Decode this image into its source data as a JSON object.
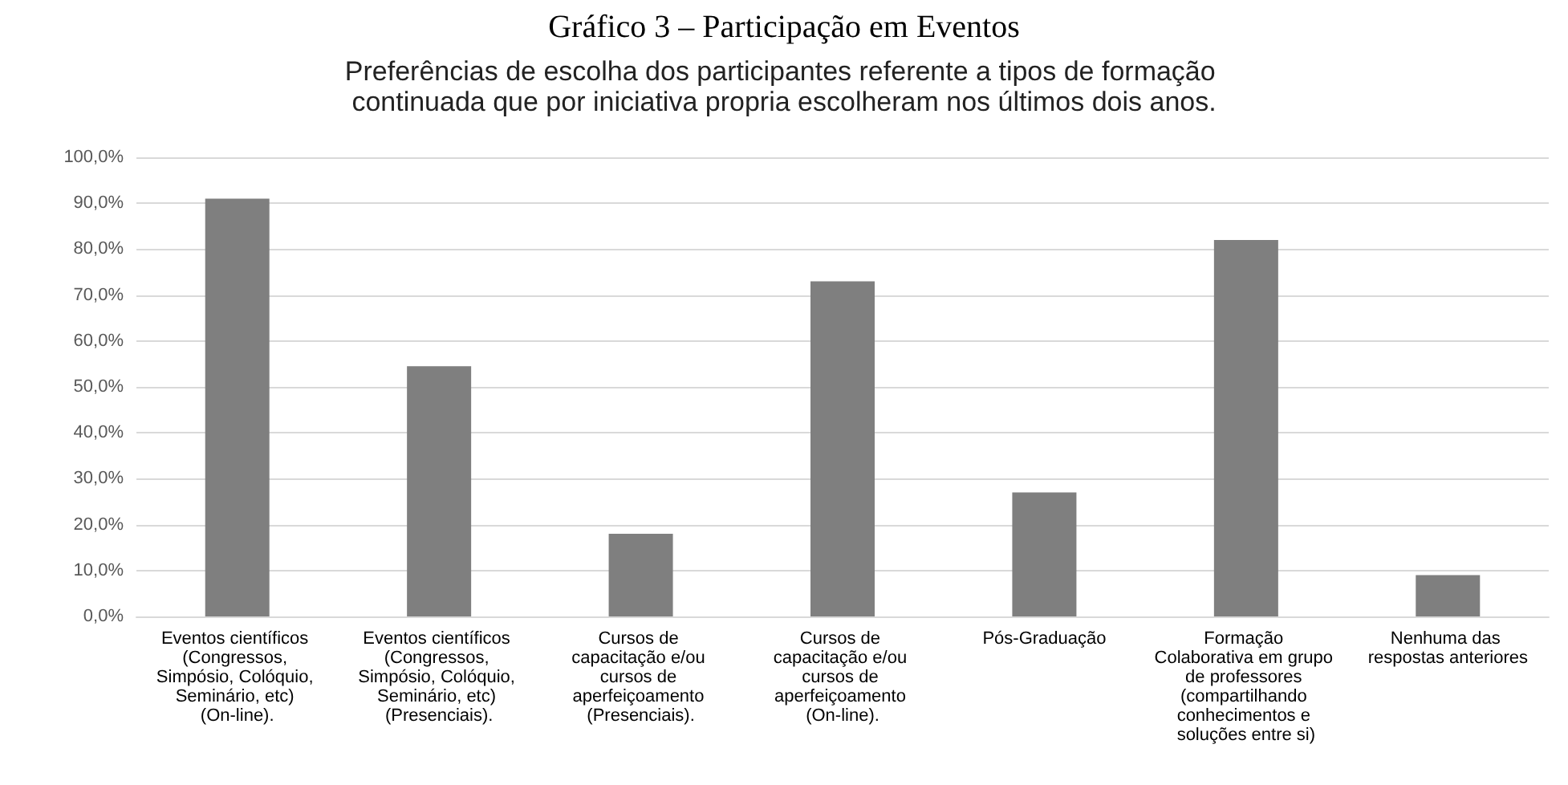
{
  "chart_data": {
    "type": "bar",
    "title": "Gráfico 3 – Participação em Eventos",
    "subtitle": "Preferências de escolha dos participantes referente a tipos de formação continuada que por iniciativa propria escolheram nos últimos dois anos.",
    "categories": [
      "Eventos científicos (Congressos, Simpósio, Colóquio, Seminário, etc) (On-line).",
      "Eventos científicos (Congressos, Simpósio, Colóquio, Seminário, etc) (Presenciais).",
      "Cursos de capacitação e/ou cursos de aperfeiçoamento (Presenciais).",
      "Cursos de capacitação e/ou cursos de aperfeiçoamento (On-line).",
      "Pós-Graduação",
      "Formação Colaborativa em grupo de professores (compartilhando conhecimentos e soluções entre si)",
      "Nenhuma das respostas anteriores"
    ],
    "values": [
      91,
      54.5,
      18,
      73,
      27,
      82,
      9
    ],
    "color": "#7f7f7f",
    "ylim": [
      0,
      100
    ],
    "yticks": [
      {
        "value": 0,
        "label": "0,0%"
      },
      {
        "value": 10,
        "label": "10,0%"
      },
      {
        "value": 20,
        "label": "20,0%"
      },
      {
        "value": 30,
        "label": "30,0%"
      },
      {
        "value": 40,
        "label": "40,0%"
      },
      {
        "value": 50,
        "label": "50,0%"
      },
      {
        "value": 60,
        "label": "60,0%"
      },
      {
        "value": 70,
        "label": "70,0%"
      },
      {
        "value": 80,
        "label": "80,0%"
      },
      {
        "value": 90,
        "label": "90,0%"
      },
      {
        "value": 100,
        "label": "100,0%"
      }
    ],
    "grid": true
  }
}
